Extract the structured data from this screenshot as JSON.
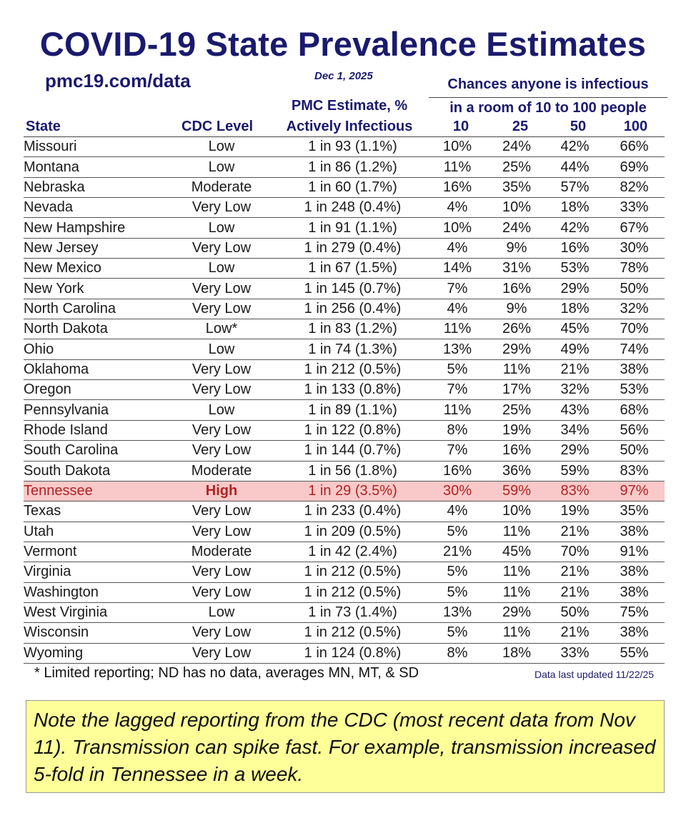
{
  "header": {
    "title": "COVID-19 State Prevalence Estimates",
    "url": "pmc19.com/data",
    "date": "Dec 1, 2025",
    "chances_line1": "Chances anyone is infectious",
    "chances_line2": "in a room of 10 to 100 people",
    "pmc_line1": "PMC Estimate, %",
    "pmc_line2": "Actively Infectious"
  },
  "columns": {
    "state": "State",
    "level": "CDC Level",
    "r10": "10",
    "r25": "25",
    "r50": "50",
    "r100": "100"
  },
  "rows": [
    {
      "state": "Missouri",
      "level": "Low",
      "estimate": "1 in 93 (1.1%)",
      "r10": "10%",
      "r25": "24%",
      "r50": "42%",
      "r100": "66%"
    },
    {
      "state": "Montana",
      "level": "Low",
      "estimate": "1 in 86 (1.2%)",
      "r10": "11%",
      "r25": "25%",
      "r50": "44%",
      "r100": "69%"
    },
    {
      "state": "Nebraska",
      "level": "Moderate",
      "estimate": "1 in 60 (1.7%)",
      "r10": "16%",
      "r25": "35%",
      "r50": "57%",
      "r100": "82%"
    },
    {
      "state": "Nevada",
      "level": "Very Low",
      "estimate": "1 in 248 (0.4%)",
      "r10": "4%",
      "r25": "10%",
      "r50": "18%",
      "r100": "33%"
    },
    {
      "state": "New Hampshire",
      "level": "Low",
      "estimate": "1 in 91 (1.1%)",
      "r10": "10%",
      "r25": "24%",
      "r50": "42%",
      "r100": "67%"
    },
    {
      "state": "New Jersey",
      "level": "Very Low",
      "estimate": "1 in 279 (0.4%)",
      "r10": "4%",
      "r25": "9%",
      "r50": "16%",
      "r100": "30%"
    },
    {
      "state": "New Mexico",
      "level": "Low",
      "estimate": "1 in 67 (1.5%)",
      "r10": "14%",
      "r25": "31%",
      "r50": "53%",
      "r100": "78%"
    },
    {
      "state": "New York",
      "level": "Very Low",
      "estimate": "1 in 145 (0.7%)",
      "r10": "7%",
      "r25": "16%",
      "r50": "29%",
      "r100": "50%"
    },
    {
      "state": "North Carolina",
      "level": "Very Low",
      "estimate": "1 in 256 (0.4%)",
      "r10": "4%",
      "r25": "9%",
      "r50": "18%",
      "r100": "32%"
    },
    {
      "state": "North Dakota",
      "level": "Low*",
      "estimate": "1 in 83 (1.2%)",
      "r10": "11%",
      "r25": "26%",
      "r50": "45%",
      "r100": "70%"
    },
    {
      "state": "Ohio",
      "level": "Low",
      "estimate": "1 in 74 (1.3%)",
      "r10": "13%",
      "r25": "29%",
      "r50": "49%",
      "r100": "74%"
    },
    {
      "state": "Oklahoma",
      "level": "Very Low",
      "estimate": "1 in 212 (0.5%)",
      "r10": "5%",
      "r25": "11%",
      "r50": "21%",
      "r100": "38%"
    },
    {
      "state": "Oregon",
      "level": "Very Low",
      "estimate": "1 in 133 (0.8%)",
      "r10": "7%",
      "r25": "17%",
      "r50": "32%",
      "r100": "53%"
    },
    {
      "state": "Pennsylvania",
      "level": "Low",
      "estimate": "1 in 89 (1.1%)",
      "r10": "11%",
      "r25": "25%",
      "r50": "43%",
      "r100": "68%"
    },
    {
      "state": "Rhode Island",
      "level": "Very Low",
      "estimate": "1 in 122 (0.8%)",
      "r10": "8%",
      "r25": "19%",
      "r50": "34%",
      "r100": "56%"
    },
    {
      "state": "South Carolina",
      "level": "Very Low",
      "estimate": "1 in 144 (0.7%)",
      "r10": "7%",
      "r25": "16%",
      "r50": "29%",
      "r100": "50%"
    },
    {
      "state": "South Dakota",
      "level": "Moderate",
      "estimate": "1 in 56 (1.8%)",
      "r10": "16%",
      "r25": "36%",
      "r50": "59%",
      "r100": "83%"
    },
    {
      "state": "Tennessee",
      "level": "High",
      "estimate": "1 in 29 (3.5%)",
      "r10": "30%",
      "r25": "59%",
      "r50": "83%",
      "r100": "97%",
      "highlight": true
    },
    {
      "state": "Texas",
      "level": "Very Low",
      "estimate": "1 in 233 (0.4%)",
      "r10": "4%",
      "r25": "10%",
      "r50": "19%",
      "r100": "35%"
    },
    {
      "state": "Utah",
      "level": "Very Low",
      "estimate": "1 in 209 (0.5%)",
      "r10": "5%",
      "r25": "11%",
      "r50": "21%",
      "r100": "38%"
    },
    {
      "state": "Vermont",
      "level": "Moderate",
      "estimate": "1 in 42 (2.4%)",
      "r10": "21%",
      "r25": "45%",
      "r50": "70%",
      "r100": "91%"
    },
    {
      "state": "Virginia",
      "level": "Very Low",
      "estimate": "1 in 212 (0.5%)",
      "r10": "5%",
      "r25": "11%",
      "r50": "21%",
      "r100": "38%"
    },
    {
      "state": "Washington",
      "level": "Very Low",
      "estimate": "1 in 212 (0.5%)",
      "r10": "5%",
      "r25": "11%",
      "r50": "21%",
      "r100": "38%"
    },
    {
      "state": "West Virginia",
      "level": "Low",
      "estimate": "1 in 73 (1.4%)",
      "r10": "13%",
      "r25": "29%",
      "r50": "50%",
      "r100": "75%"
    },
    {
      "state": "Wisconsin",
      "level": "Very Low",
      "estimate": "1 in 212 (0.5%)",
      "r10": "5%",
      "r25": "11%",
      "r50": "21%",
      "r100": "38%"
    },
    {
      "state": "Wyoming",
      "level": "Very Low",
      "estimate": "1 in 124 (0.8%)",
      "r10": "8%",
      "r25": "18%",
      "r50": "33%",
      "r100": "55%"
    }
  ],
  "footer": {
    "footnote": "* Limited reporting; ND has no data, averages MN, MT, & SD",
    "updated": "Data last updated 11/22/25",
    "note": "Note the lagged reporting from the CDC (most recent data from Nov 11). Transmission can spike fast. For example, transmission increased 5-fold in Tennessee in a week."
  },
  "colors": {
    "heading": "#1a1a6e",
    "highlight_bg": "#f9c9c9",
    "highlight_text": "#b02222",
    "note_bg": "#ffff99"
  }
}
